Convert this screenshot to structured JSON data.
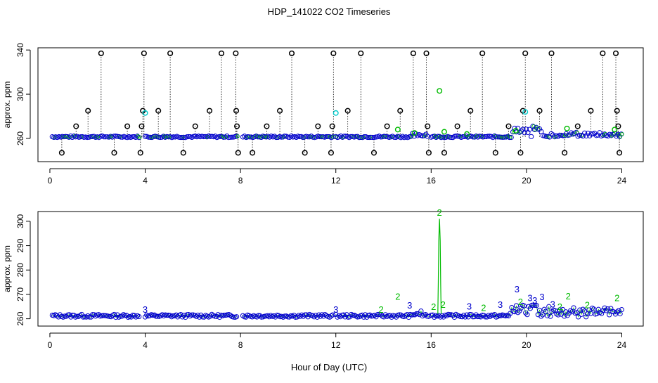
{
  "figure": {
    "title": "HDP_141022  CO2 Timeseries",
    "xlabel": "Hour of Day (UTC)"
  },
  "colors": {
    "black": "#000000",
    "blue": "#0000cc",
    "green": "#00bb00",
    "cyan": "#00cccc"
  },
  "chart_data": [
    {
      "type": "scatter",
      "panel": "top",
      "ylabel": "approx. ppm",
      "xlim": [
        -0.5,
        24.9
      ],
      "ylim": [
        239,
        342
      ],
      "xticks": [
        0,
        4,
        8,
        12,
        16,
        20,
        24
      ],
      "yticks": [
        260,
        300,
        340
      ],
      "baseline": 261.5,
      "base_segments": [
        [
          0.1,
          3.8
        ],
        [
          4.0,
          7.9
        ],
        [
          8.1,
          11.9
        ],
        [
          12.0,
          15.9
        ],
        [
          16.0,
          24.0
        ]
      ],
      "spike_points": [
        {
          "x": 0.5,
          "y": 247
        },
        {
          "x": 1.1,
          "y": 271
        },
        {
          "x": 1.6,
          "y": 285
        },
        {
          "x": 2.15,
          "y": 337
        },
        {
          "x": 2.7,
          "y": 247
        },
        {
          "x": 3.25,
          "y": 271
        },
        {
          "x": 3.8,
          "y": 247
        },
        {
          "x": 3.85,
          "y": 271
        },
        {
          "x": 3.9,
          "y": 285
        },
        {
          "x": 3.95,
          "y": 337
        },
        {
          "x": 4.55,
          "y": 285
        },
        {
          "x": 5.05,
          "y": 337
        },
        {
          "x": 5.6,
          "y": 247
        },
        {
          "x": 6.1,
          "y": 271
        },
        {
          "x": 6.7,
          "y": 285
        },
        {
          "x": 7.2,
          "y": 337
        },
        {
          "x": 7.8,
          "y": 337
        },
        {
          "x": 7.82,
          "y": 285
        },
        {
          "x": 7.85,
          "y": 271
        },
        {
          "x": 7.9,
          "y": 247
        },
        {
          "x": 8.5,
          "y": 247
        },
        {
          "x": 9.1,
          "y": 271
        },
        {
          "x": 9.65,
          "y": 285
        },
        {
          "x": 10.15,
          "y": 337
        },
        {
          "x": 10.7,
          "y": 247
        },
        {
          "x": 11.25,
          "y": 271
        },
        {
          "x": 11.8,
          "y": 247
        },
        {
          "x": 11.85,
          "y": 271
        },
        {
          "x": 11.9,
          "y": 337
        },
        {
          "x": 12.5,
          "y": 285
        },
        {
          "x": 13.05,
          "y": 337
        },
        {
          "x": 13.6,
          "y": 247
        },
        {
          "x": 14.15,
          "y": 271
        },
        {
          "x": 14.7,
          "y": 285
        },
        {
          "x": 15.25,
          "y": 337
        },
        {
          "x": 15.8,
          "y": 337
        },
        {
          "x": 15.85,
          "y": 271
        },
        {
          "x": 15.9,
          "y": 247
        },
        {
          "x": 16.55,
          "y": 247
        },
        {
          "x": 17.1,
          "y": 271
        },
        {
          "x": 17.65,
          "y": 285
        },
        {
          "x": 18.15,
          "y": 337
        },
        {
          "x": 18.7,
          "y": 247
        },
        {
          "x": 19.25,
          "y": 271
        },
        {
          "x": 19.75,
          "y": 247
        },
        {
          "x": 19.85,
          "y": 285
        },
        {
          "x": 19.95,
          "y": 337
        },
        {
          "x": 20.55,
          "y": 285
        },
        {
          "x": 21.05,
          "y": 337
        },
        {
          "x": 21.6,
          "y": 247
        },
        {
          "x": 22.15,
          "y": 271
        },
        {
          "x": 22.7,
          "y": 285
        },
        {
          "x": 23.2,
          "y": 337
        },
        {
          "x": 23.75,
          "y": 337
        },
        {
          "x": 23.8,
          "y": 285
        },
        {
          "x": 23.85,
          "y": 271
        },
        {
          "x": 23.9,
          "y": 247
        }
      ],
      "green_points": [
        {
          "x": 14.6,
          "y": 268
        },
        {
          "x": 15.3,
          "y": 265
        },
        {
          "x": 16.35,
          "y": 303
        },
        {
          "x": 16.55,
          "y": 266
        },
        {
          "x": 17.5,
          "y": 264
        },
        {
          "x": 19.55,
          "y": 267
        },
        {
          "x": 21.7,
          "y": 269
        },
        {
          "x": 23.7,
          "y": 268
        }
      ],
      "cyan_points": [
        {
          "x": 4.0,
          "y": 283
        },
        {
          "x": 12.0,
          "y": 283
        },
        {
          "x": 19.95,
          "y": 284
        }
      ]
    },
    {
      "type": "scatter",
      "panel": "bottom",
      "ylabel": "approx. ppm",
      "xlim": [
        -0.5,
        24.9
      ],
      "ylim": [
        257,
        304
      ],
      "xticks": [
        0,
        4,
        8,
        12,
        16,
        20,
        24
      ],
      "yticks": [
        260,
        270,
        280,
        290,
        300
      ],
      "baseline": 261.2,
      "base_segments": [
        [
          0.1,
          3.8
        ],
        [
          4.0,
          7.9
        ],
        [
          8.1,
          11.9
        ],
        [
          12.0,
          15.9
        ],
        [
          16.0,
          24.0
        ]
      ],
      "green_spike": [
        {
          "x": 16.28,
          "y": 262
        },
        {
          "x": 16.3,
          "y": 275
        },
        {
          "x": 16.32,
          "y": 292
        },
        {
          "x": 16.35,
          "y": 301
        },
        {
          "x": 16.38,
          "y": 292
        },
        {
          "x": 16.4,
          "y": 274
        },
        {
          "x": 16.42,
          "y": 262
        }
      ],
      "labels": [
        {
          "text": "3",
          "x": 4.0,
          "y": 262.5,
          "color": "blue"
        },
        {
          "text": "3",
          "x": 12.0,
          "y": 262.5,
          "color": "blue"
        },
        {
          "text": "2",
          "x": 13.9,
          "y": 262.5,
          "color": "green"
        },
        {
          "text": "2",
          "x": 14.6,
          "y": 267.8,
          "color": "green"
        },
        {
          "text": "3",
          "x": 15.1,
          "y": 264.2,
          "color": "blue"
        },
        {
          "text": "2",
          "x": 16.1,
          "y": 263.6,
          "color": "green"
        },
        {
          "text": "2",
          "x": 16.35,
          "y": 302.3,
          "color": "green"
        },
        {
          "text": "2",
          "x": 16.5,
          "y": 264.5,
          "color": "green"
        },
        {
          "text": "3",
          "x": 17.6,
          "y": 263.8,
          "color": "blue"
        },
        {
          "text": "2",
          "x": 18.2,
          "y": 263.2,
          "color": "green"
        },
        {
          "text": "3",
          "x": 18.9,
          "y": 264.5,
          "color": "blue"
        },
        {
          "text": "3",
          "x": 19.6,
          "y": 270.8,
          "color": "blue"
        },
        {
          "text": "2",
          "x": 19.75,
          "y": 265.6,
          "color": "green"
        },
        {
          "text": "3",
          "x": 20.15,
          "y": 267.3,
          "color": "blue"
        },
        {
          "text": "3",
          "x": 20.35,
          "y": 266.2,
          "color": "blue"
        },
        {
          "text": "3",
          "x": 20.65,
          "y": 267.7,
          "color": "blue"
        },
        {
          "text": "3",
          "x": 21.1,
          "y": 264.6,
          "color": "blue"
        },
        {
          "text": "2",
          "x": 21.4,
          "y": 263.6,
          "color": "green"
        },
        {
          "text": "2",
          "x": 21.75,
          "y": 268.0,
          "color": "green"
        },
        {
          "text": "2",
          "x": 22.55,
          "y": 264.3,
          "color": "green"
        },
        {
          "text": "2",
          "x": 23.8,
          "y": 267.2,
          "color": "green"
        }
      ]
    }
  ]
}
